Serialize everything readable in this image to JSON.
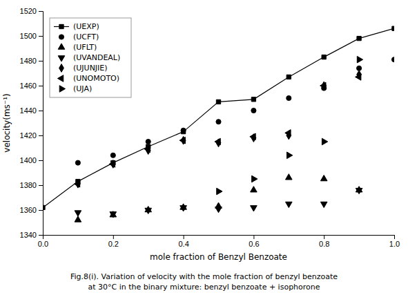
{
  "chart_data": {
    "type": "line",
    "xlabel": "mole fraction of Benzyl Benzoate",
    "ylabel": "velocity(ms⁻¹)",
    "caption": "Fig.8(i). Variation of velocity with the mole fraction of benzyl benzoate\nat 30°C in the binary mixture: benzyl benzoate + isophorone",
    "xlim": [
      0.0,
      1.0
    ],
    "ylim": [
      1340,
      1520
    ],
    "xticks": [
      {
        "value": 0.0,
        "label": "0.0"
      },
      0.2,
      0.4,
      0.6,
      0.8,
      {
        "value": 1.0,
        "label": "1.0"
      }
    ],
    "yticks": [
      1340,
      1360,
      1380,
      1400,
      1420,
      1440,
      1460,
      1480,
      1500,
      1520
    ],
    "grid": false,
    "legend": "upper left",
    "series": [
      {
        "name": "(UEXP)",
        "type": "line",
        "color": "#000000",
        "marker": "square",
        "line_style": "solid",
        "x": [
          0.0,
          0.1,
          0.2,
          0.3,
          0.4,
          0.5,
          0.6,
          0.7,
          0.8,
          0.9,
          1.0
        ],
        "values": [
          1362,
          1383,
          1398,
          1411,
          1423,
          1447,
          1449,
          1467,
          1483,
          1498,
          1506
        ]
      },
      {
        "name": "(UCFT)",
        "type": "scatter",
        "color": "#000000",
        "marker": "circle",
        "line_style": "none",
        "x": [
          0.1,
          0.2,
          0.3,
          0.4,
          0.5,
          0.6,
          0.7,
          0.8,
          0.9,
          1.0
        ],
        "values": [
          1398,
          1404,
          1415,
          1424,
          1431,
          1440,
          1450,
          1458,
          1474,
          1481
        ]
      },
      {
        "name": "(UFLT)",
        "type": "scatter",
        "color": "#000000",
        "marker": "triangle-up",
        "line_style": "none",
        "x": [
          0.1,
          0.2,
          0.3,
          0.4,
          0.5,
          0.6,
          0.7,
          0.8,
          0.9
        ],
        "values": [
          1352,
          1356,
          1360,
          1362,
          1363,
          1376,
          1386,
          1385,
          1376
        ]
      },
      {
        "name": "(UVANDEAL)",
        "type": "scatter",
        "color": "#000000",
        "marker": "triangle-down",
        "line_style": "none",
        "x": [
          0.1,
          0.2,
          0.3,
          0.4,
          0.5,
          0.6,
          0.7,
          0.8,
          0.9
        ],
        "values": [
          1358,
          1357,
          1360,
          1362,
          1361,
          1362,
          1365,
          1365,
          1376
        ]
      },
      {
        "name": "(UJUNJIE)",
        "type": "scatter",
        "color": "#000000",
        "marker": "diamond",
        "line_style": "none",
        "x": [
          0.1,
          0.2,
          0.3,
          0.4,
          0.5,
          0.6,
          0.7,
          0.8,
          0.9
        ],
        "values": [
          1381,
          1397,
          1408,
          1416,
          1414,
          1418,
          1420,
          1460,
          1469
        ]
      },
      {
        "name": "(UNOMOTO)",
        "type": "scatter",
        "color": "#000000",
        "marker": "triangle-left",
        "line_style": "none",
        "x": [
          0.1,
          0.2,
          0.3,
          0.4,
          0.5,
          0.6,
          0.7,
          0.8,
          0.9
        ],
        "values": [
          1381,
          1397,
          1409,
          1416,
          1415,
          1419,
          1422,
          1460,
          1467
        ]
      },
      {
        "name": "(UJA)",
        "type": "scatter",
        "color": "#000000",
        "marker": "triangle-right",
        "line_style": "none",
        "x": [
          0.5,
          0.6,
          0.7,
          0.8,
          0.9
        ],
        "values": [
          1375,
          1385,
          1404,
          1415,
          1481
        ]
      }
    ]
  }
}
